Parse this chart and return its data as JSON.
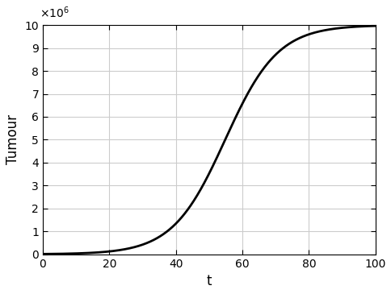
{
  "T0": 10000,
  "K": 10000000,
  "r": 0.126,
  "t_start": 0,
  "t_end": 100,
  "n_points": 2000,
  "xlim": [
    0,
    100
  ],
  "ylim": [
    0,
    10000000.0
  ],
  "xticks": [
    0,
    20,
    40,
    60,
    80,
    100
  ],
  "yticks": [
    0,
    1000000.0,
    2000000.0,
    3000000.0,
    4000000.0,
    5000000.0,
    6000000.0,
    7000000.0,
    8000000.0,
    9000000.0,
    10000000.0
  ],
  "ytick_labels": [
    "0",
    "1",
    "2",
    "3",
    "4",
    "5",
    "6",
    "7",
    "8",
    "9",
    "10"
  ],
  "xlabel": "t",
  "ylabel": "Tumour",
  "line_color": "#000000",
  "line_width": 2.0,
  "grid_color": "#cccccc",
  "background_color": "#ffffff",
  "scale_label": "$\\times10^6$",
  "xlabel_fontsize": 12,
  "ylabel_fontsize": 12,
  "tick_fontsize": 10,
  "scale_fontsize": 10
}
